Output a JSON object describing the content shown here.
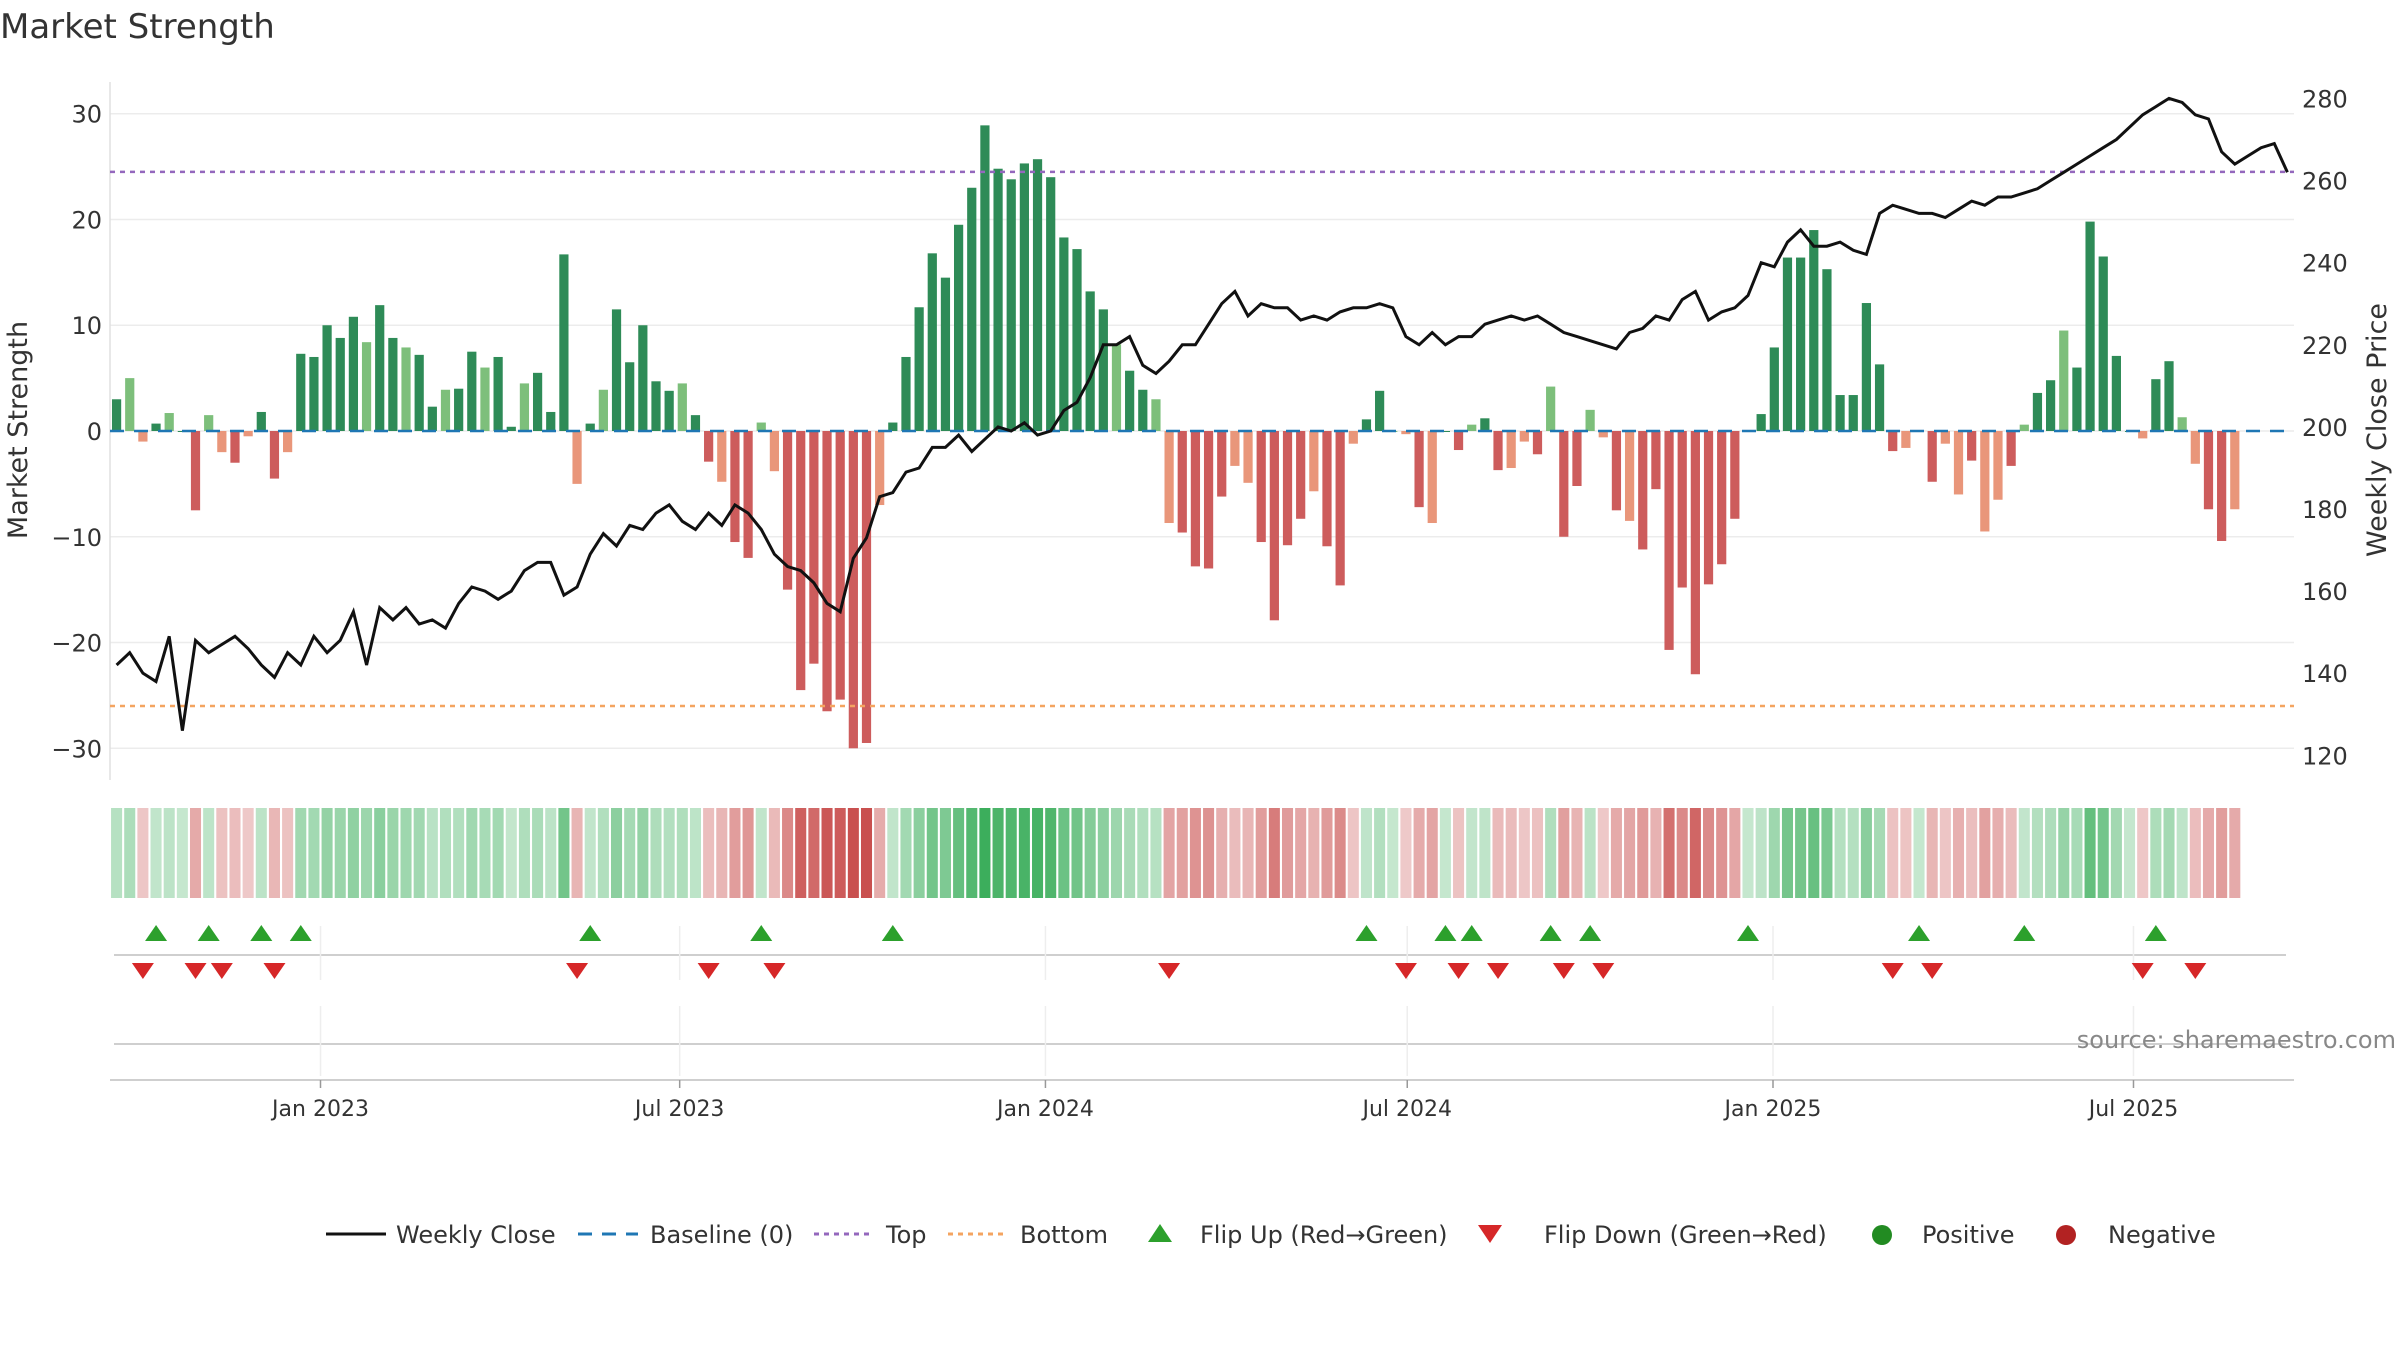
{
  "chart_data": {
    "type": "bar+line",
    "title": "Market Strength",
    "ylabel": "Market Strength",
    "y2label": "Weekly Close Price",
    "ylim": [
      -33,
      33
    ],
    "y2lim": [
      114,
      284
    ],
    "xlim": [
      -0.5,
      165.5
    ],
    "yticks": [
      30,
      20,
      10,
      0,
      -10,
      -20,
      -30
    ],
    "ytick_labels": [
      "30",
      "20",
      "10",
      "0",
      "−10",
      "−20",
      "−30"
    ],
    "y2ticks": [
      280,
      260,
      240,
      220,
      200,
      180,
      160,
      140,
      120
    ],
    "x_ticks": [
      {
        "label": "Jan 2023",
        "week": 15.5
      },
      {
        "label": "Jul 2023",
        "week": 42.8
      },
      {
        "label": "Jan 2024",
        "week": 70.6
      },
      {
        "label": "Jul 2024",
        "week": 98.1
      },
      {
        "label": "Jan 2025",
        "week": 125.9
      },
      {
        "label": "Jul 2025",
        "week": 153.3
      }
    ],
    "top_level": 24.5,
    "bottom_level": -26,
    "strength": [
      3,
      5,
      -1,
      0.7,
      1.7,
      0,
      -7.5,
      1.5,
      -2,
      -3,
      -0.5,
      1.8,
      -4.5,
      -2,
      7.3,
      7,
      10,
      8.8,
      10.8,
      8.4,
      11.9,
      8.8,
      7.9,
      7.2,
      2.3,
      3.9,
      4,
      7.5,
      6,
      7,
      0.4,
      4.5,
      5.5,
      1.8,
      16.7,
      -5,
      0.7,
      3.9,
      11.5,
      6.5,
      10,
      4.7,
      3.8,
      4.5,
      1.5,
      -2.9,
      -4.8,
      -10.5,
      -12,
      0.8,
      -3.8,
      -15,
      -24.5,
      -22,
      -26.5,
      -25.4,
      -30,
      -29.5,
      -7,
      0.8,
      7,
      11.7,
      16.8,
      14.5,
      19.5,
      23,
      28.9,
      24.8,
      23.8,
      25.3,
      25.7,
      24,
      18.3,
      17.2,
      13.2,
      11.5,
      8.2,
      5.7,
      3.9,
      3,
      -8.7,
      -9.6,
      -12.8,
      -13,
      -6.2,
      -3.3,
      -4.9,
      -10.5,
      -17.9,
      -10.8,
      -8.3,
      -5.7,
      -10.9,
      -14.6,
      -1.2,
      1.1,
      3.8,
      0,
      -0.3,
      -7.2,
      -8.7,
      0,
      -1.8,
      0.6,
      1.2,
      -3.7,
      -3.5,
      -1,
      -2.2,
      4.2,
      -10,
      -5.2,
      2,
      -0.6,
      -7.5,
      -8.5,
      -11.2,
      -5.5,
      -20.7,
      -14.8,
      -23,
      -14.5,
      -12.6,
      -8.3,
      0,
      1.6,
      7.9,
      16.4,
      16.4,
      19,
      15.3,
      3.4,
      3.4,
      12.1,
      6.3,
      -1.9,
      -1.6,
      0,
      -4.8,
      -1.2,
      -6,
      -2.8,
      -9.5,
      -6.5,
      -3.3,
      0.6,
      3.6,
      4.8,
      9.5,
      6,
      19.8,
      16.5,
      7.1,
      0,
      -0.7,
      4.9,
      6.6,
      1.3,
      -3.1,
      -7.4,
      -10.4,
      -7.4
    ],
    "weekly_close": [
      142,
      145,
      140,
      138,
      149,
      126,
      148,
      145,
      147,
      149,
      146,
      142,
      139,
      145,
      142,
      149,
      145,
      148,
      155,
      142,
      156,
      153,
      156,
      152,
      153,
      151,
      157,
      161,
      160,
      158,
      160,
      165,
      167,
      167,
      159,
      161,
      169,
      174,
      171,
      176,
      175,
      179,
      181,
      177,
      175,
      179,
      176,
      181,
      179,
      175,
      169,
      166,
      165,
      162,
      157,
      155,
      168,
      173,
      183,
      184,
      189,
      190,
      195,
      195,
      198,
      194,
      197,
      200,
      199,
      201,
      198,
      199,
      204,
      206,
      212,
      220,
      220,
      222,
      215,
      213,
      216,
      220,
      220,
      225,
      230,
      233,
      227,
      230,
      229,
      229,
      226,
      227,
      226,
      228,
      229,
      229,
      230,
      229,
      222,
      220,
      223,
      220,
      222,
      222,
      225,
      226,
      227,
      226,
      227,
      225,
      223,
      222,
      221,
      220,
      219,
      223,
      224,
      227,
      226,
      231,
      233,
      226,
      228,
      229,
      232,
      240,
      239,
      245,
      248,
      244,
      244,
      245,
      243,
      242,
      252,
      254,
      253,
      252,
      252,
      251,
      253,
      255,
      254,
      256,
      256,
      257,
      258,
      260,
      262,
      264,
      266,
      268,
      270,
      273,
      276,
      278,
      280,
      279,
      276,
      275,
      267,
      264,
      266,
      268,
      269,
      262
    ]
  },
  "legend": {
    "weekly_close": "Weekly Close",
    "baseline": "Baseline (0)",
    "top": "Top",
    "bottom": "Bottom",
    "flip_up": "Flip Up (Red→Green)",
    "flip_down": "Flip Down (Green→Red)",
    "positive": "Positive",
    "negative": "Negative"
  },
  "source": "source: sharemaestro.com",
  "colors": {
    "pos_strong": "#2e8b57",
    "pos_weak": "#7dbf7b",
    "neg_strong": "#cd5c5c",
    "neg_weak": "#e9967a",
    "line": "#111111",
    "top_line": "#9467bd",
    "bottom_line": "#f4a460",
    "baseline": "#1f77b4",
    "flip_up": "#2ca02c",
    "flip_down": "#d62728",
    "positive_dot": "#228b22",
    "negative_dot": "#b22222"
  }
}
